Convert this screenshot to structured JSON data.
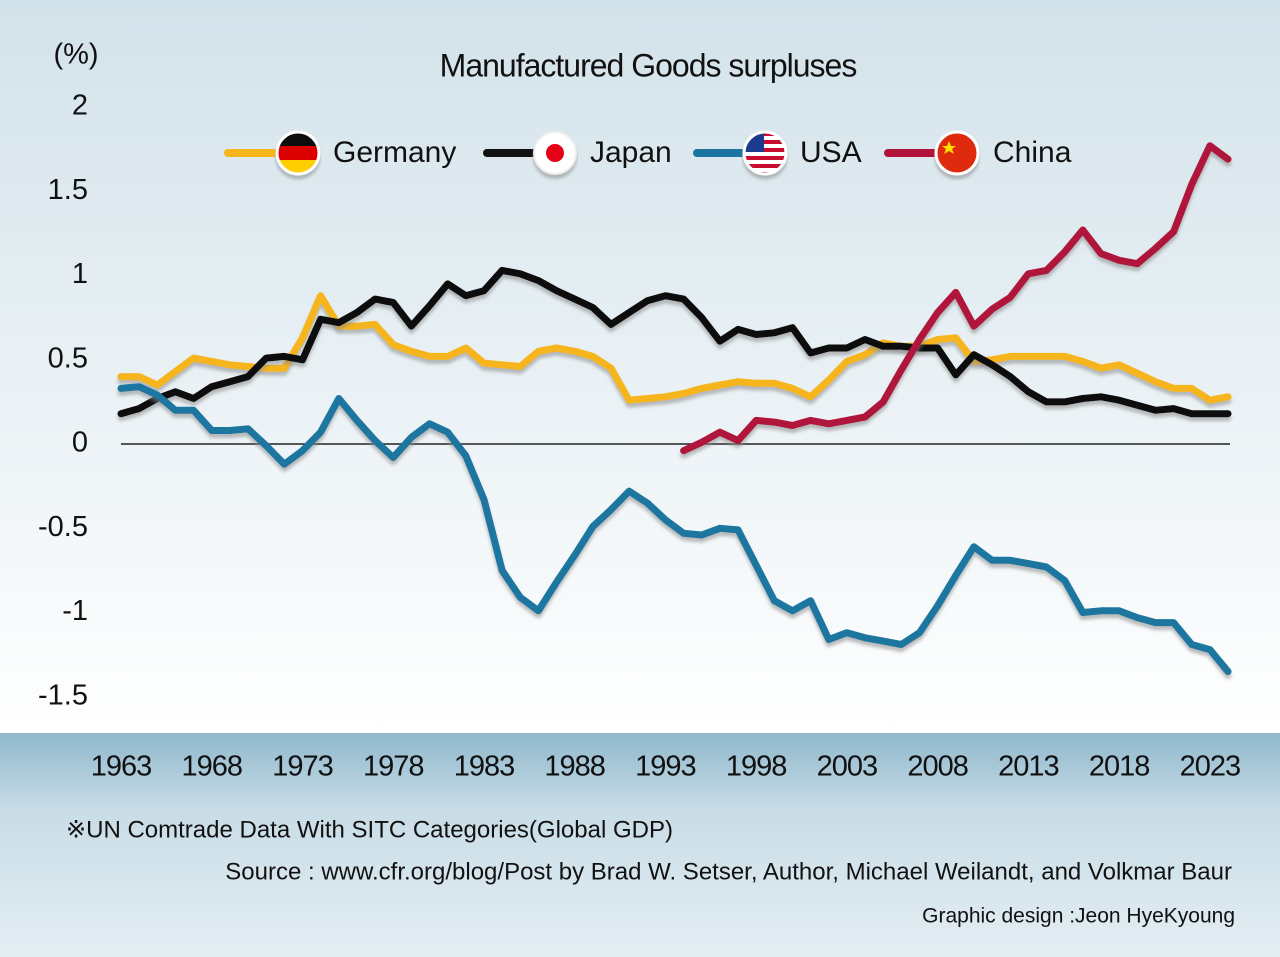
{
  "chart_data": {
    "type": "line",
    "title": "Manufactured Goods surpluses",
    "y_label": "(%)",
    "note": "※UN Comtrade Data With SITC Categories(Global GDP)",
    "source": "Source : www.cfr.org/blog/Post by Brad W. Setser, Author, Michael Weilandt, and Volkmar Baur",
    "credit": "Graphic design :Jeon HyeKyoung",
    "x": [
      1963,
      1964,
      1965,
      1966,
      1967,
      1968,
      1969,
      1970,
      1971,
      1972,
      1973,
      1974,
      1975,
      1976,
      1977,
      1978,
      1979,
      1980,
      1981,
      1982,
      1983,
      1984,
      1985,
      1986,
      1987,
      1988,
      1989,
      1990,
      1991,
      1992,
      1993,
      1994,
      1995,
      1996,
      1997,
      1998,
      1999,
      2000,
      2001,
      2002,
      2003,
      2004,
      2005,
      2006,
      2007,
      2008,
      2009,
      2010,
      2011,
      2012,
      2013,
      2014,
      2015,
      2016,
      2017,
      2018,
      2019,
      2020,
      2021,
      2022,
      2023,
      2024
    ],
    "xlim": [
      1963,
      2024
    ],
    "xticks": [
      1963,
      1968,
      1973,
      1978,
      1983,
      1988,
      1993,
      1998,
      2003,
      2008,
      2013,
      2018,
      2023
    ],
    "ylim": [
      -1.7,
      2.2
    ],
    "yticks": [
      2,
      1.5,
      1,
      0.5,
      0,
      -0.5,
      -1,
      -1.5
    ],
    "grid": false,
    "series": [
      {
        "name": "Germany",
        "color": "#f6b51b",
        "values": [
          0.4,
          0.4,
          0.35,
          0.43,
          0.51,
          0.49,
          0.47,
          0.46,
          0.45,
          0.45,
          0.63,
          0.88,
          0.7,
          0.7,
          0.71,
          0.59,
          0.55,
          0.52,
          0.52,
          0.57,
          0.48,
          0.47,
          0.46,
          0.55,
          0.57,
          0.55,
          0.52,
          0.45,
          0.26,
          0.27,
          0.28,
          0.3,
          0.33,
          0.35,
          0.37,
          0.36,
          0.36,
          0.33,
          0.28,
          0.38,
          0.49,
          0.53,
          0.6,
          0.58,
          0.58,
          0.62,
          0.63,
          0.49,
          0.5,
          0.52,
          0.52,
          0.52,
          0.52,
          0.49,
          0.45,
          0.47,
          0.42,
          0.37,
          0.33,
          0.33,
          0.26,
          0.28
        ]
      },
      {
        "name": "Japan",
        "color": "#111111",
        "values": [
          0.18,
          0.21,
          0.27,
          0.31,
          0.27,
          0.34,
          0.37,
          0.4,
          0.51,
          0.52,
          0.5,
          0.74,
          0.72,
          0.78,
          0.86,
          0.84,
          0.7,
          0.82,
          0.95,
          0.88,
          0.91,
          1.03,
          1.01,
          0.97,
          0.91,
          0.86,
          0.81,
          0.71,
          0.78,
          0.85,
          0.88,
          0.86,
          0.75,
          0.61,
          0.68,
          0.65,
          0.66,
          0.69,
          0.54,
          0.57,
          0.57,
          0.62,
          0.58,
          0.58,
          0.57,
          0.57,
          0.41,
          0.53,
          0.47,
          0.4,
          0.31,
          0.25,
          0.25,
          0.27,
          0.28,
          0.26,
          0.23,
          0.2,
          0.21,
          0.18,
          0.18,
          0.18
        ]
      },
      {
        "name": "USA",
        "color": "#1a76a0",
        "values": [
          0.33,
          0.34,
          0.29,
          0.2,
          0.2,
          0.08,
          0.08,
          0.09,
          -0.01,
          -0.12,
          -0.04,
          0.07,
          0.27,
          0.14,
          0.02,
          -0.08,
          0.04,
          0.12,
          0.07,
          -0.07,
          -0.33,
          -0.75,
          -0.91,
          -0.99,
          -0.82,
          -0.66,
          -0.49,
          -0.39,
          -0.28,
          -0.35,
          -0.45,
          -0.53,
          -0.54,
          -0.5,
          -0.51,
          -0.72,
          -0.93,
          -0.99,
          -0.93,
          -1.16,
          -1.12,
          -1.15,
          -1.17,
          -1.19,
          -1.12,
          -0.96,
          -0.78,
          -0.61,
          -0.69,
          -0.69,
          -0.71,
          -0.73,
          -0.81,
          -1.0,
          -0.99,
          -0.99,
          -1.03,
          -1.06,
          -1.06,
          -1.19,
          -1.22,
          -1.35
        ]
      },
      {
        "name": "China",
        "color": "#b0123a",
        "values": [
          null,
          null,
          null,
          null,
          null,
          null,
          null,
          null,
          null,
          null,
          null,
          null,
          null,
          null,
          null,
          null,
          null,
          null,
          null,
          null,
          null,
          null,
          null,
          null,
          null,
          null,
          null,
          null,
          null,
          null,
          null,
          -0.04,
          0.01,
          0.07,
          0.02,
          0.14,
          0.13,
          0.11,
          0.14,
          0.12,
          0.14,
          0.16,
          0.25,
          0.44,
          0.62,
          0.78,
          0.9,
          0.7,
          0.8,
          0.87,
          1.01,
          1.03,
          1.14,
          1.27,
          1.13,
          1.09,
          1.07,
          1.16,
          1.26,
          1.54,
          1.77,
          1.69
        ]
      }
    ]
  }
}
